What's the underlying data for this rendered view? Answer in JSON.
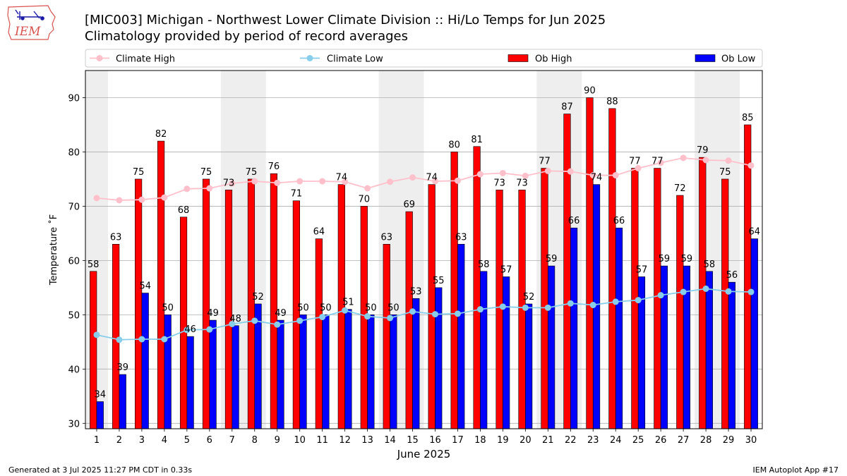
{
  "header": {
    "logo_text": "IEM",
    "title_line1": "[MIC003] Michigan - Northwest Lower Climate Division :: Hi/Lo Temps for Jun 2025",
    "title_line2": "Climatology provided by period of record averages"
  },
  "footer": {
    "generated": "Generated at 3 Jul 2025 11:27 PM CDT in 0.33s",
    "app": "IEM Autoplot App #17"
  },
  "chart_data": {
    "type": "bar",
    "xlabel": "June 2025",
    "ylabel": "Temperature ˚F",
    "ylim": [
      29,
      95
    ],
    "yticks": [
      30,
      40,
      50,
      60,
      70,
      80,
      90
    ],
    "grid": true,
    "legend_position": "top",
    "categories": [
      "1",
      "2",
      "3",
      "4",
      "5",
      "6",
      "7",
      "8",
      "9",
      "10",
      "11",
      "12",
      "13",
      "14",
      "15",
      "16",
      "17",
      "18",
      "19",
      "20",
      "21",
      "22",
      "23",
      "24",
      "25",
      "26",
      "27",
      "28",
      "29",
      "30"
    ],
    "weekend_shading": [
      [
        1,
        1
      ],
      [
        7,
        8
      ],
      [
        14,
        15
      ],
      [
        21,
        22
      ],
      [
        28,
        29
      ]
    ],
    "series": [
      {
        "name": "Climate High",
        "kind": "line",
        "color": "#ffc0cb",
        "values": [
          71.5,
          71.1,
          71.2,
          71.6,
          73.2,
          73.3,
          74.2,
          74.6,
          74.3,
          74.6,
          74.6,
          74.5,
          73.3,
          74.5,
          75.3,
          74.6,
          74.7,
          75.9,
          76.1,
          75.6,
          76.5,
          76.4,
          75.7,
          75.7,
          77.0,
          78.0,
          78.9,
          78.5,
          78.4,
          77.5
        ]
      },
      {
        "name": "Climate Low",
        "kind": "line",
        "color": "#87ceeb",
        "values": [
          46.3,
          45.4,
          45.5,
          45.5,
          47.2,
          47.3,
          48.3,
          48.9,
          48.2,
          48.9,
          49.6,
          50.8,
          49.7,
          49.4,
          50.6,
          50.1,
          50.2,
          51.0,
          51.5,
          51.3,
          51.3,
          52.1,
          51.8,
          52.4,
          52.7,
          53.6,
          54.2,
          54.8,
          54.3,
          54.2
        ]
      },
      {
        "name": "Ob High",
        "kind": "bar",
        "color": "#ff0000",
        "values": [
          58,
          63,
          75,
          82,
          68,
          75,
          73,
          75,
          76,
          71,
          64,
          74,
          70,
          63,
          69,
          74,
          80,
          81,
          73,
          73,
          77,
          87,
          90,
          88,
          77,
          77,
          72,
          79,
          75,
          85
        ]
      },
      {
        "name": "Ob Low",
        "kind": "bar",
        "color": "#0000ff",
        "values": [
          34,
          39,
          54,
          50,
          46,
          49,
          48,
          52,
          49,
          50,
          50,
          51,
          50,
          50,
          53,
          55,
          63,
          58,
          57,
          52,
          59,
          66,
          74,
          66,
          57,
          59,
          59,
          58,
          56,
          64
        ]
      }
    ]
  }
}
